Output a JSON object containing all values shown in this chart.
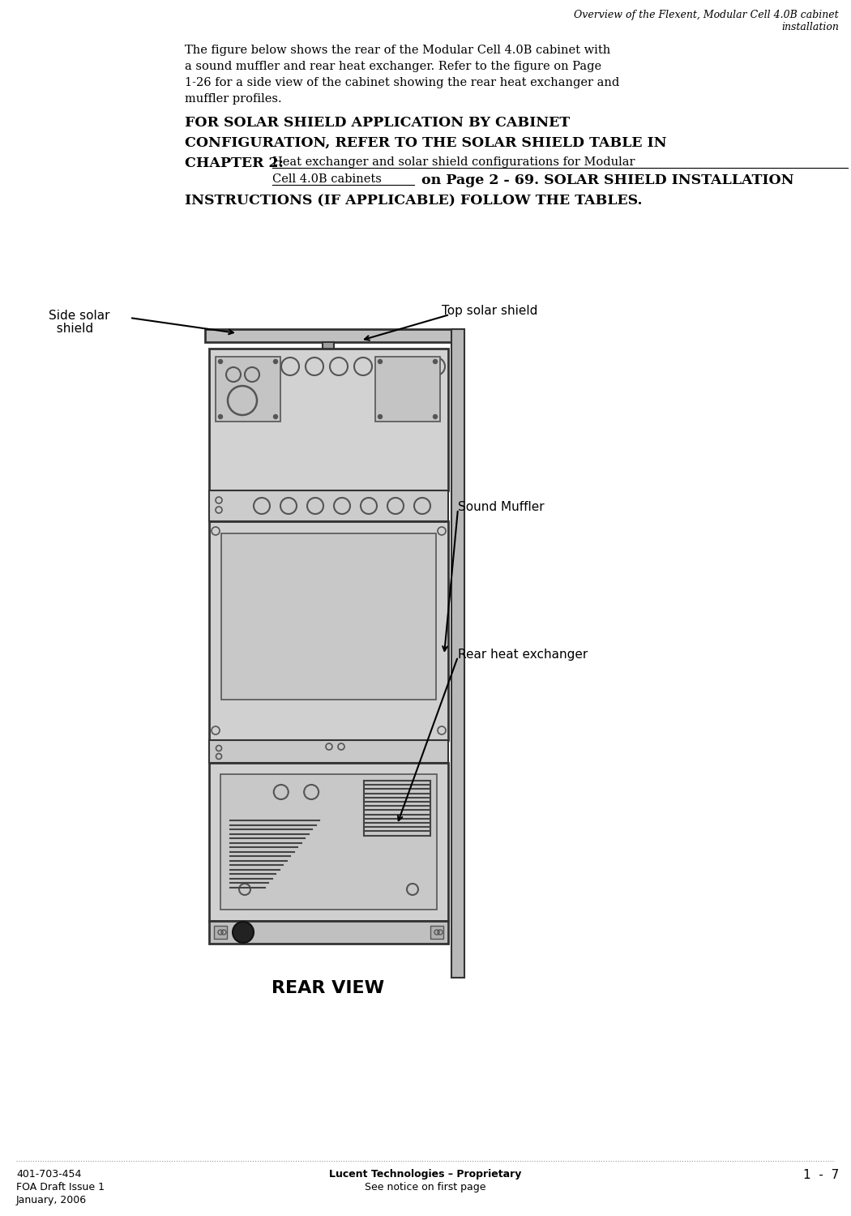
{
  "page_title_line1": "Overview of the Flexent, Modular Cell 4.0B cabinet",
  "page_title_line2": "installation",
  "body_text_lines": [
    "The figure below shows the rear of the Modular Cell 4.0B cabinet with",
    "a sound muffler and rear heat exchanger. Refer to the figure on Page",
    "1-26 for a side view of the cabinet showing the rear heat exchanger and",
    "muffler profiles."
  ],
  "bold_line1": "FOR SOLAR SHIELD APPLICATION BY CABINET",
  "bold_line2": "CONFIGURATION, REFER TO THE SOLAR SHIELD TABLE IN",
  "bold_ch2_prefix": "CHAPTER 2: ",
  "underline_line1": "Heat exchanger and solar shield configurations for Modular",
  "underline_line2": "Cell 4.0B cabinets",
  "suffix_line2": " on Page 2 - 69. SOLAR SHIELD INSTALLATION",
  "bold_line4": "INSTRUCTIONS (IF APPLICABLE) FOLLOW THE TABLES.",
  "label_side_solar": "Side solar",
  "label_side_solar2": "  shield",
  "label_top_solar": "Top solar shield",
  "label_sound_muffler": "Sound Muffler",
  "label_rear_heat": "Rear heat exchanger",
  "caption": "REAR VIEW",
  "footer_left_line1": "401-703-454",
  "footer_left_line2": "FOA Draft Issue 1",
  "footer_left_line3": "January, 2006",
  "footer_center_line1": "Lucent Technologies – Proprietary",
  "footer_center_line2": "See notice on first page",
  "footer_right": "1  -  7",
  "bg_color": "#ffffff",
  "text_color": "#000000",
  "gray_light": "#d0d0d0",
  "gray_med": "#b8b8b8",
  "gray_dark": "#888888",
  "border_color": "#333333",
  "border_thin": "#555555"
}
